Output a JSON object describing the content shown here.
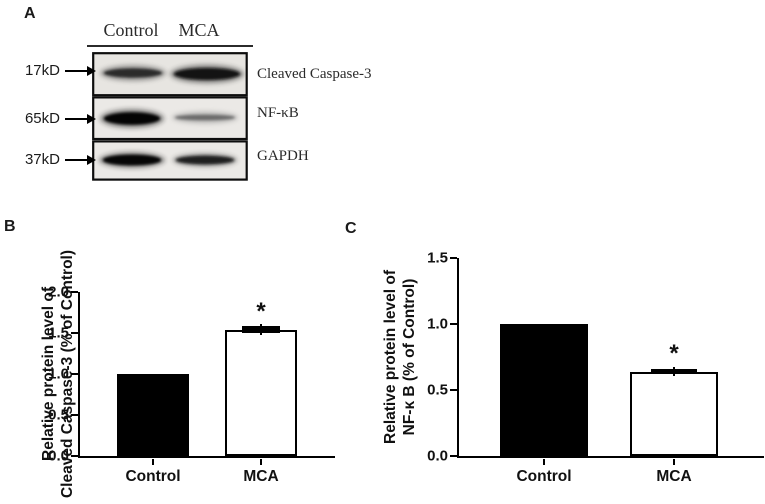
{
  "figure": {
    "panels": {
      "a": {
        "label": "A",
        "col_headers": [
          "Control",
          "MCA"
        ],
        "rows": [
          {
            "marker": "17kD",
            "protein": "Cleaved Caspase-3",
            "band_intensity": [
              "medium",
              "strong"
            ]
          },
          {
            "marker": "65kD",
            "protein": "NF-κB",
            "band_intensity": [
              "strong",
              "faint"
            ]
          },
          {
            "marker": "37kD",
            "protein": "GAPDH",
            "band_intensity": [
              "strong",
              "medium"
            ]
          }
        ]
      },
      "b": {
        "label": "B"
      },
      "c": {
        "label": "C"
      }
    }
  },
  "chart_data": [
    {
      "type": "bar",
      "panel": "B",
      "title": "",
      "categories": [
        "Control",
        "MCA"
      ],
      "values": [
        1.0,
        1.54
      ],
      "errors": [
        null,
        0.04
      ],
      "significance": [
        null,
        "*"
      ],
      "bar_fills": [
        "#000000",
        "#ffffff"
      ],
      "ylabel_lines": [
        "Relative protein level of",
        "Cleaved Caspase-3 (% of Control)"
      ],
      "xlabel": "",
      "ylim": [
        0,
        2.0
      ],
      "yticks": [
        0,
        0.5,
        1.0,
        1.5,
        2.0
      ],
      "ytick_labels": [
        "0.0",
        "0.5",
        "1.0",
        "1.5",
        "2.0"
      ],
      "grid": false,
      "legend": null
    },
    {
      "type": "bar",
      "panel": "C",
      "title": "",
      "categories": [
        "Control",
        "MCA"
      ],
      "values": [
        1.0,
        0.64
      ],
      "errors": [
        null,
        0.02
      ],
      "significance": [
        null,
        "*"
      ],
      "bar_fills": [
        "#000000",
        "#ffffff"
      ],
      "ylabel_lines": [
        "Relative protein level of",
        "NF-κ B (% of Control)"
      ],
      "xlabel": "",
      "ylim": [
        0,
        1.5
      ],
      "yticks": [
        0,
        0.5,
        1.0,
        1.5
      ],
      "ytick_labels": [
        "0.0",
        "0.5",
        "1.0",
        "1.5"
      ],
      "grid": false,
      "legend": null
    }
  ],
  "colors": {
    "axis": "#000000",
    "bar_black": "#000000",
    "bar_white": "#ffffff",
    "blot_background": "#e9e7e4",
    "text": "#111111"
  }
}
